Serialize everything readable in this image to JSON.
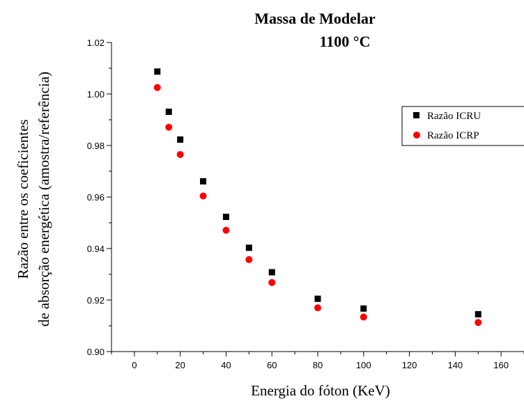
{
  "chart_data": {
    "type": "scatter",
    "title": "Massa de Modelar",
    "subtitle": "1100 °C",
    "xlabel": "Energia do fóton (KeV)",
    "ylabel_line1": "Razão entre os coeficientes",
    "ylabel_line2": "de absorção energética (amostra/referência)",
    "xlim": [
      -10,
      170
    ],
    "ylim": [
      0.9,
      1.02
    ],
    "x_ticks": [
      0,
      20,
      40,
      60,
      80,
      100,
      120,
      140,
      160
    ],
    "x_tick_labels": [
      "0",
      "20",
      "40",
      "60",
      "80",
      "100",
      "120",
      "140",
      "160"
    ],
    "y_ticks": [
      0.9,
      0.92,
      0.94,
      0.96,
      0.98,
      1.0,
      1.02
    ],
    "y_tick_labels": [
      "0.90",
      "0.92",
      "0.94",
      "0.96",
      "0.98",
      "1.00",
      "1.02"
    ],
    "grid": false,
    "legend_position": "top-right",
    "series": [
      {
        "name": "Razão ICRU",
        "marker": "square",
        "color": "#000000",
        "x": [
          10,
          15,
          20,
          30,
          40,
          50,
          60,
          80,
          100,
          150
        ],
        "y": [
          1.0087,
          0.9931,
          0.9823,
          0.9661,
          0.9523,
          0.9403,
          0.9308,
          0.9205,
          0.9167,
          0.9145
        ]
      },
      {
        "name": "Razão ICRP",
        "marker": "circle",
        "color": "#ff0000",
        "x": [
          10,
          15,
          20,
          30,
          40,
          50,
          60,
          80,
          100,
          150
        ],
        "y": [
          1.0025,
          0.9871,
          0.9765,
          0.9604,
          0.9471,
          0.9357,
          0.9268,
          0.917,
          0.9134,
          0.9113
        ]
      }
    ]
  }
}
